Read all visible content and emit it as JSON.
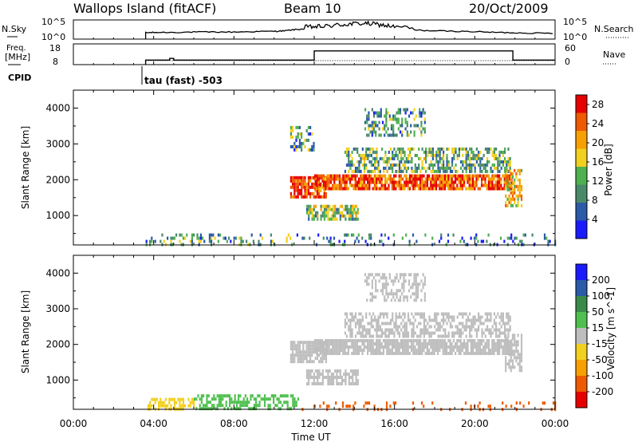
{
  "header": {
    "station": "Wallops Island (fitACF)",
    "beam": "Beam 10",
    "date": "20/Oct/2009"
  },
  "status_panels": {
    "nsky_label": "N.Sky",
    "nsearch_label": "N.Search",
    "nsky_ticks": [
      "10^5",
      "10^0"
    ],
    "freq_label_line1": "Freq.",
    "freq_label_line2": "[MHz]",
    "freq_ticks": [
      "18",
      "8"
    ],
    "nave_label": "Nave",
    "nave_ticks": [
      "60",
      "0"
    ],
    "cpid_label": "CPID",
    "cpid_text": "tau (fast) -503"
  },
  "colors": {
    "power_scale": [
      "#1a1aff",
      "#2a5aa8",
      "#4a8a6a",
      "#4fb04f",
      "#f2d020",
      "#f7a000",
      "#ef5a00",
      "#e60000"
    ],
    "velocity_scale": [
      "#e60000",
      "#ef5a00",
      "#f7a000",
      "#f2d020",
      "#bebebe",
      "#4fc04f",
      "#3a8a4a",
      "#2a5aa8",
      "#1a1aff"
    ]
  },
  "chart_data": [
    {
      "type": "line",
      "name": "N.Sky / N.Search",
      "xlabel": "",
      "x_range": [
        "00:00",
        "24:00"
      ],
      "ylim": [
        0,
        5
      ],
      "y_scale": "log10",
      "series": [
        {
          "x": [
            3.6,
            4,
            5,
            6,
            7,
            8,
            9,
            10,
            10.5,
            11,
            11.5,
            12,
            12.5,
            13,
            13.5,
            14,
            14.5,
            15,
            15.5,
            16,
            17,
            18,
            19,
            20,
            21,
            22,
            23,
            24
          ],
          "y": [
            1.5,
            1.6,
            1.6,
            1.7,
            1.7,
            1.7,
            1.8,
            1.9,
            2.0,
            2.3,
            2.5,
            2.6,
            2.7,
            3.0,
            3.2,
            3.4,
            3.5,
            3.3,
            3.0,
            2.6,
            2.2,
            2.0,
            1.9,
            1.8,
            1.6,
            1.5,
            1.4,
            1.4
          ]
        }
      ]
    },
    {
      "type": "line",
      "name": "Freq / Nave",
      "x_range": [
        "00:00",
        "24:00"
      ],
      "ylim_freq": [
        8,
        18
      ],
      "ylim_nave": [
        0,
        60
      ],
      "series": [
        {
          "name": "Freq.",
          "x": [
            3.6,
            4.8,
            4.8,
            5.0,
            5.0,
            12.0,
            12.0,
            21.9,
            21.9,
            24
          ],
          "y": [
            10.2,
            10.2,
            11.0,
            11.0,
            10.2,
            10.2,
            14.6,
            14.6,
            10.2,
            10.2
          ]
        },
        {
          "name": "Nave",
          "x": [
            3.6,
            24
          ],
          "y": [
            10,
            10
          ]
        }
      ]
    },
    {
      "type": "heatmap",
      "name": "Power",
      "x_ticks": [
        "00:00",
        "04:00",
        "08:00",
        "12:00",
        "16:00",
        "20:00",
        "00:00"
      ],
      "x_range": [
        0,
        24
      ],
      "ylabel": "Slant Range [km]",
      "ylim": [
        180,
        4500
      ],
      "y_ticks": [
        1000,
        2000,
        3000,
        4000
      ],
      "colorbar_label": "Power [dB]",
      "colorbar_range": [
        0,
        30
      ],
      "colorbar_ticks": [
        4,
        8,
        12,
        16,
        20,
        24,
        28
      ],
      "regions": [
        {
          "t0": 3.6,
          "t1": 11.2,
          "r0": 200,
          "r1": 500,
          "level": 10,
          "density": 0.25
        },
        {
          "t0": 10.8,
          "t1": 12.6,
          "r0": 1500,
          "r1": 2100,
          "level": 26,
          "density": 0.8
        },
        {
          "t0": 10.8,
          "t1": 12.0,
          "r0": 2800,
          "r1": 3500,
          "level": 10,
          "density": 0.4
        },
        {
          "t0": 11.6,
          "t1": 14.2,
          "r0": 900,
          "r1": 1300,
          "level": 14,
          "density": 0.7
        },
        {
          "t0": 12.0,
          "t1": 21.8,
          "r0": 1750,
          "r1": 2150,
          "level": 25,
          "density": 0.85
        },
        {
          "t0": 13.5,
          "t1": 21.8,
          "r0": 2200,
          "r1": 2900,
          "level": 12,
          "density": 0.55
        },
        {
          "t0": 14.5,
          "t1": 17.5,
          "r0": 3200,
          "r1": 4000,
          "level": 10,
          "density": 0.45
        },
        {
          "t0": 21.5,
          "t1": 22.3,
          "r0": 1300,
          "r1": 2300,
          "level": 18,
          "density": 0.6
        },
        {
          "t0": 11.2,
          "t1": 24,
          "r0": 200,
          "r1": 500,
          "level": 8,
          "density": 0.18
        }
      ]
    },
    {
      "type": "heatmap",
      "name": "Velocity",
      "x_ticks": [
        "00:00",
        "04:00",
        "08:00",
        "12:00",
        "16:00",
        "20:00",
        "00:00"
      ],
      "xlabel": "Time UT",
      "x_range": [
        0,
        24
      ],
      "ylabel": "Slant Range [km]",
      "ylim": [
        180,
        4500
      ],
      "y_ticks": [
        1000,
        2000,
        3000,
        4000
      ],
      "colorbar_label": "Velocity [m s^-1]",
      "colorbar_ticks": [
        200,
        100,
        50,
        15,
        -15,
        -50,
        -100,
        -200
      ],
      "regions": [
        {
          "t0": 3.6,
          "t1": 6.0,
          "r0": 200,
          "r1": 500,
          "level": -40,
          "density": 0.5
        },
        {
          "t0": 6.0,
          "t1": 11.2,
          "r0": 200,
          "r1": 600,
          "level": 30,
          "density": 0.55
        },
        {
          "t0": 10.8,
          "t1": 12.6,
          "r0": 1500,
          "r1": 2100,
          "level": 0,
          "density": 0.8
        },
        {
          "t0": 11.6,
          "t1": 14.2,
          "r0": 900,
          "r1": 1300,
          "level": 0,
          "density": 0.7
        },
        {
          "t0": 12.0,
          "t1": 21.8,
          "r0": 1750,
          "r1": 2150,
          "level": 0,
          "density": 0.85
        },
        {
          "t0": 13.5,
          "t1": 21.8,
          "r0": 2200,
          "r1": 2900,
          "level": 0,
          "density": 0.55
        },
        {
          "t0": 14.5,
          "t1": 17.5,
          "r0": 3200,
          "r1": 4000,
          "level": 0,
          "density": 0.45
        },
        {
          "t0": 21.5,
          "t1": 22.3,
          "r0": 1300,
          "r1": 2300,
          "level": 0,
          "density": 0.6
        },
        {
          "t0": 11.2,
          "t1": 24,
          "r0": 200,
          "r1": 400,
          "level": -150,
          "density": 0.15
        }
      ]
    }
  ]
}
